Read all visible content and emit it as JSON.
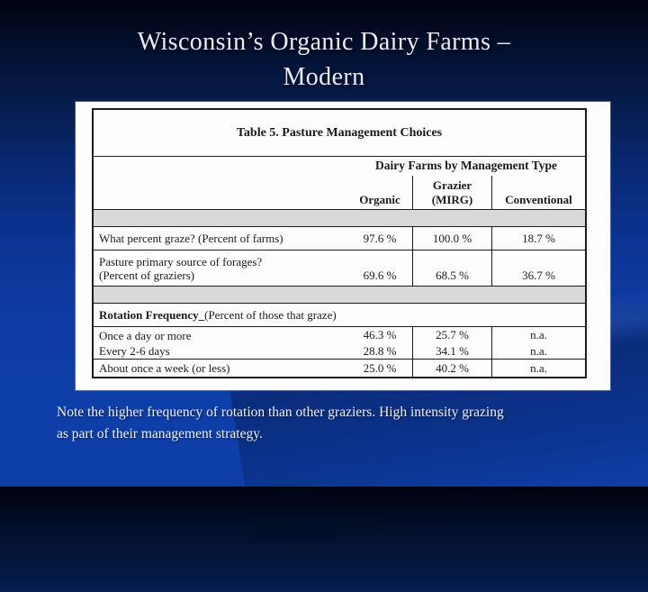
{
  "slide": {
    "title_line1": "Wisconsin’s Organic Dairy Farms –",
    "title_line2": "Modern",
    "note_line1": "Note the higher frequency of rotation than other graziers.  High intensity grazing",
    "note_line2": "as part of their management strategy."
  },
  "table": {
    "caption": "Table 5.  Pasture Management Choices",
    "group_header": "Dairy Farms by Management Type",
    "col_organic": "Organic",
    "col_grazier_line1": "Grazier",
    "col_grazier_line2": "(MIRG)",
    "col_conventional": "Conventional",
    "rows": [
      {
        "label": "What percent graze?  (Percent of farms)",
        "organic": "97.6 %",
        "grazier": "100.0 %",
        "conventional": "18.7 %"
      },
      {
        "label_line1": "Pasture primary source of forages?",
        "label_line2": "(Percent of graziers)",
        "organic": "69.6 %",
        "grazier": "68.5 %",
        "conventional": "36.7 %"
      },
      {
        "label_bold": "Rotation Frequency_",
        "label_rest": " (Percent of those that graze)"
      },
      {
        "label": "Once a day or more",
        "organic": "46.3 %",
        "grazier": "25.7 %",
        "conventional": "n.a."
      },
      {
        "label": "Every 2-6 days",
        "organic": "28.8 %",
        "grazier": "34.1 %",
        "conventional": "n.a."
      },
      {
        "label": "About once a week (or less)",
        "organic": "25.0 %",
        "grazier": "40.2 %",
        "conventional": "n.a."
      }
    ]
  },
  "colors": {
    "background_top": "#020310",
    "background_bottom": "#0e3fa9",
    "table_background": "#ffffff",
    "separator_band_gray": "#d9d9d9",
    "title_text": "#e9ecfa"
  },
  "chart_data": {
    "type": "table",
    "title": "Table 5. Pasture Management Choices",
    "group_header": "Dairy Farms by Management Type",
    "columns": [
      "Organic",
      "Grazier (MIRG)",
      "Conventional"
    ],
    "rows": [
      {
        "label": "What percent graze? (Percent of farms)",
        "values": [
          97.6,
          100.0,
          18.7
        ],
        "unit": "%"
      },
      {
        "label": "Pasture primary source of forages? (Percent of graziers)",
        "values": [
          69.6,
          68.5,
          36.7
        ],
        "unit": "%"
      },
      {
        "label": "Rotation Frequency (Percent of those that graze)",
        "section": true
      },
      {
        "label": "Once a day or more",
        "values": [
          46.3,
          25.7,
          null
        ],
        "unit": "%",
        "conventional": "n.a."
      },
      {
        "label": "Every 2-6 days",
        "values": [
          28.8,
          34.1,
          null
        ],
        "unit": "%",
        "conventional": "n.a."
      },
      {
        "label": "About once a week (or less)",
        "values": [
          25.0,
          40.2,
          null
        ],
        "unit": "%",
        "conventional": "n.a."
      }
    ]
  }
}
